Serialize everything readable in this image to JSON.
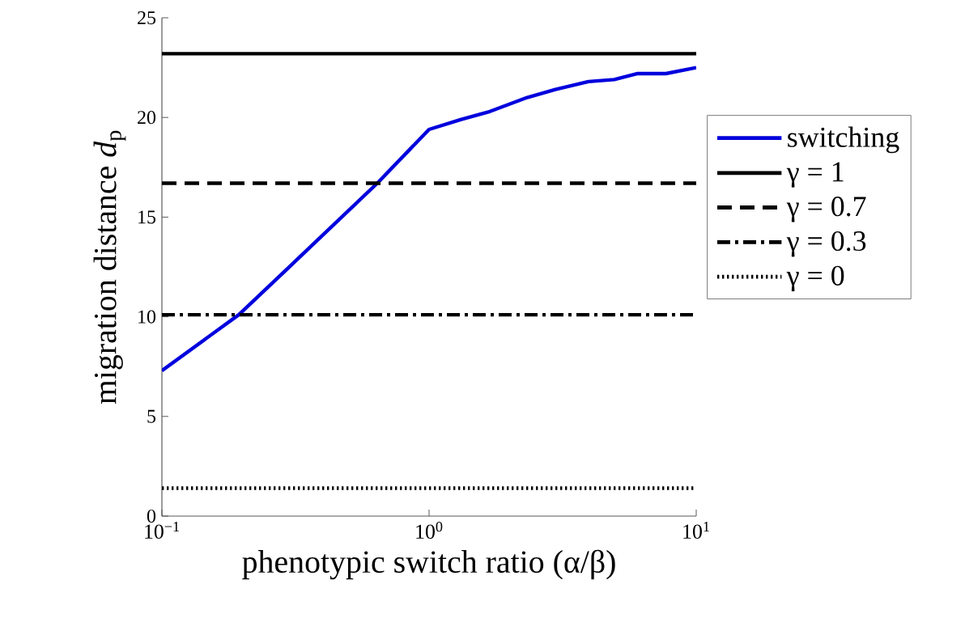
{
  "chart_data": {
    "type": "line",
    "xlabel": "phenotypic switch ratio (α/β)",
    "ylabel": "migration distance *d*$_{p}$",
    "log": "x",
    "xlim": [
      0.1,
      10
    ],
    "ylim": [
      0,
      25
    ],
    "xticks": [
      {
        "value": 0.1,
        "label": "10$^{−1}$"
      },
      {
        "value": 1,
        "label": "10$^{0}$"
      },
      {
        "value": 10,
        "label": "10$^{1}$"
      }
    ],
    "yticks": [
      0,
      5,
      10,
      15,
      20,
      25
    ],
    "grid": false,
    "legend": "right",
    "marker": "none",
    "series": [
      {
        "name": "switching",
        "color": "#0000dd",
        "line_style": "solid",
        "x": [
          0.1,
          0.194,
          0.284,
          0.64,
          1.0,
          1.32,
          1.69,
          2.33,
          2.97,
          3.95,
          4.93,
          6.04,
          7.7,
          10
        ],
        "values": [
          7.3,
          10.1,
          12.2,
          16.7,
          19.4,
          19.9,
          20.3,
          21.0,
          21.4,
          21.8,
          21.9,
          22.2,
          22.2,
          22.5
        ]
      },
      {
        "name": "γ = 1",
        "color": "#000000",
        "line_style": "solid",
        "x": [
          0.1,
          10
        ],
        "values": [
          23.2,
          23.2
        ]
      },
      {
        "name": "γ = 0.7",
        "color": "#000000",
        "line_style": "dashed",
        "x": [
          0.1,
          10
        ],
        "values": [
          16.7,
          16.7
        ]
      },
      {
        "name": "γ = 0.3",
        "color": "#000000",
        "line_style": "dashdot",
        "x": [
          0.1,
          10
        ],
        "values": [
          10.1,
          10.1
        ]
      },
      {
        "name": "γ = 0",
        "color": "#000000",
        "line_style": "dotted",
        "x": [
          0.1,
          10
        ],
        "values": [
          1.4,
          1.4
        ]
      }
    ]
  }
}
